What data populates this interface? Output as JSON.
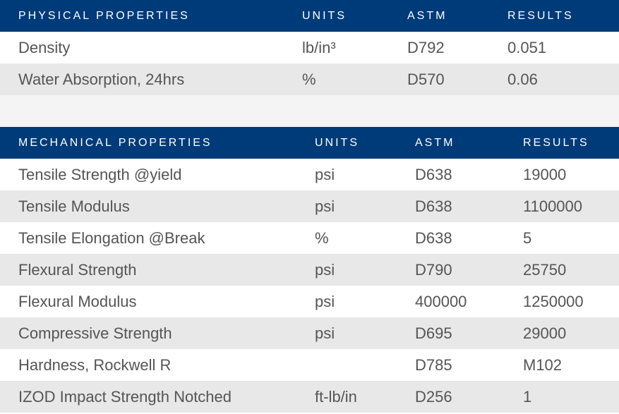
{
  "physical": {
    "headers": {
      "property": "PHYSICAL PROPERTIES",
      "units": "UNITS",
      "astm": "ASTM",
      "results": "RESULTS"
    },
    "rows": [
      {
        "property": "Density",
        "units": "lb/in³",
        "astm": "D792",
        "results": "0.051"
      },
      {
        "property": "Water Absorption, 24hrs",
        "units": "%",
        "astm": "D570",
        "results": "0.06"
      }
    ]
  },
  "mechanical": {
    "headers": {
      "property": "MECHANICAL PROPERTIES",
      "units": "UNITS",
      "astm": "ASTM",
      "results": "RESULTS"
    },
    "rows": [
      {
        "property": "Tensile Strength @yield",
        "units": "psi",
        "astm": "D638",
        "results": "19000"
      },
      {
        "property": "Tensile Modulus",
        "units": "psi",
        "astm": "D638",
        "results": "1100000"
      },
      {
        "property": "Tensile Elongation @Break",
        "units": "%",
        "astm": "D638",
        "results": "5"
      },
      {
        "property": "Flexural Strength",
        "units": "psi",
        "astm": "D790",
        "results": "25750"
      },
      {
        "property": "Flexural Modulus",
        "units": "psi",
        "astm": "400000",
        "results": "1250000"
      },
      {
        "property": "Compressive Strength",
        "units": "psi",
        "astm": "D695",
        "results": "29000"
      },
      {
        "property": "Hardness, Rockwell R",
        "units": "",
        "astm": "D785",
        "results": "M102"
      },
      {
        "property": "IZOD Impact Strength Notched",
        "units": "ft-lb/in",
        "astm": "D256",
        "results": "1"
      }
    ]
  },
  "colors": {
    "header_bg": "#003b79",
    "header_text": "#ffffff",
    "row_alt_bg": "#e8e8e8",
    "body_text": "#555555"
  }
}
